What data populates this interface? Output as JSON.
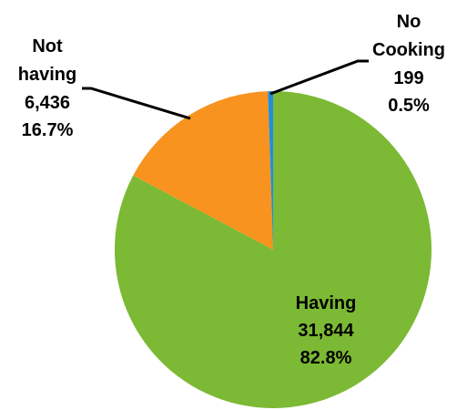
{
  "chart_data": {
    "type": "pie",
    "slices": [
      {
        "name": "Having",
        "value": 31844,
        "value_label": "31,844",
        "percent_label": "82.8%",
        "color": "#7cb934"
      },
      {
        "name": "Not having",
        "value": 6436,
        "value_label": "6,436",
        "percent_label": "16.7%",
        "color": "#f7931e"
      },
      {
        "name": "No Cooking",
        "value": 199,
        "value_label": "199",
        "percent_label": "0.5%",
        "color": "#1f8fde"
      }
    ],
    "start_angle_deg": 0,
    "direction": "clockwise",
    "leader_line_color": "#000000"
  }
}
